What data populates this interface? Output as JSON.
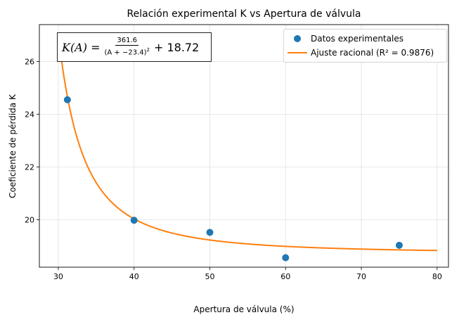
{
  "chart_data": {
    "type": "scatter",
    "title": "Relación experimental K vs Apertura de válvula",
    "xlabel": "Apertura de válvula (%)",
    "ylabel": "Coeficiente de pérdida K",
    "xlim": [
      27.5,
      81.5
    ],
    "ylim": [
      18.2,
      27.4
    ],
    "xticks": [
      30,
      40,
      50,
      60,
      70,
      80
    ],
    "yticks": [
      20,
      22,
      24,
      26
    ],
    "grid": true,
    "legend_position": "top-right",
    "series": [
      {
        "name": "Datos experimentales",
        "kind": "scatter",
        "color": "#1f77b4",
        "x": [
          31.2,
          40,
          50,
          60,
          75
        ],
        "y": [
          24.55,
          19.98,
          19.52,
          18.56,
          19.03
        ]
      },
      {
        "name": "Ajuste racional (R² = 0.9876)",
        "kind": "line",
        "color": "#ff7f0e",
        "model": {
          "a": 361.6,
          "b": -23.4,
          "c": 18.72
        },
        "x_range": [
          30.0,
          80.0
        ]
      }
    ],
    "annotation": {
      "lhs": "K(A) = ",
      "numerator": "361.6",
      "denominator": "(A + −23.4)",
      "exponent": "2",
      "rest": "+ 18.72"
    }
  }
}
